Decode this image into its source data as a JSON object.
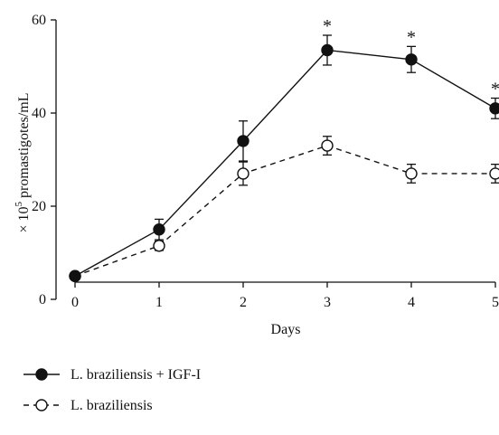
{
  "chart_data": {
    "type": "line",
    "x": [
      0,
      1,
      2,
      3,
      4,
      5
    ],
    "series": [
      {
        "name": "L. braziliensis + IGF-I",
        "values": [
          5,
          15,
          34,
          53.5,
          51.5,
          41
        ],
        "errors": [
          0,
          2.2,
          4.3,
          3.2,
          2.8,
          2.2
        ],
        "marker": "filled-circle",
        "line_style": "solid"
      },
      {
        "name": "L. braziliensis",
        "values": [
          5,
          11.5,
          27,
          33,
          27,
          27
        ],
        "errors": [
          0,
          1,
          2.5,
          2,
          2,
          2
        ],
        "marker": "open-circle",
        "line_style": "dashed"
      }
    ],
    "xlabel": "Days",
    "ylabel": {
      "prefix": "× 10",
      "superscript": "5",
      "suffix": " promastigotes/mL"
    },
    "xticks": [
      "0",
      "1",
      "2",
      "3",
      "4",
      "5"
    ],
    "yticks": [
      "0",
      "20",
      "40",
      "60"
    ],
    "xlim": [
      0,
      5
    ],
    "ylim": [
      0,
      60
    ],
    "annotations": [
      {
        "x": 3,
        "y": 53.5,
        "text": "*"
      },
      {
        "x": 4,
        "y": 51.5,
        "text": "*"
      },
      {
        "x": 5,
        "y": 41,
        "text": "*"
      }
    ],
    "grid": false,
    "legend_position": "bottom-left",
    "colors": {
      "line": "#111111",
      "fill": "#111111",
      "open_fill": "#ffffff"
    }
  }
}
